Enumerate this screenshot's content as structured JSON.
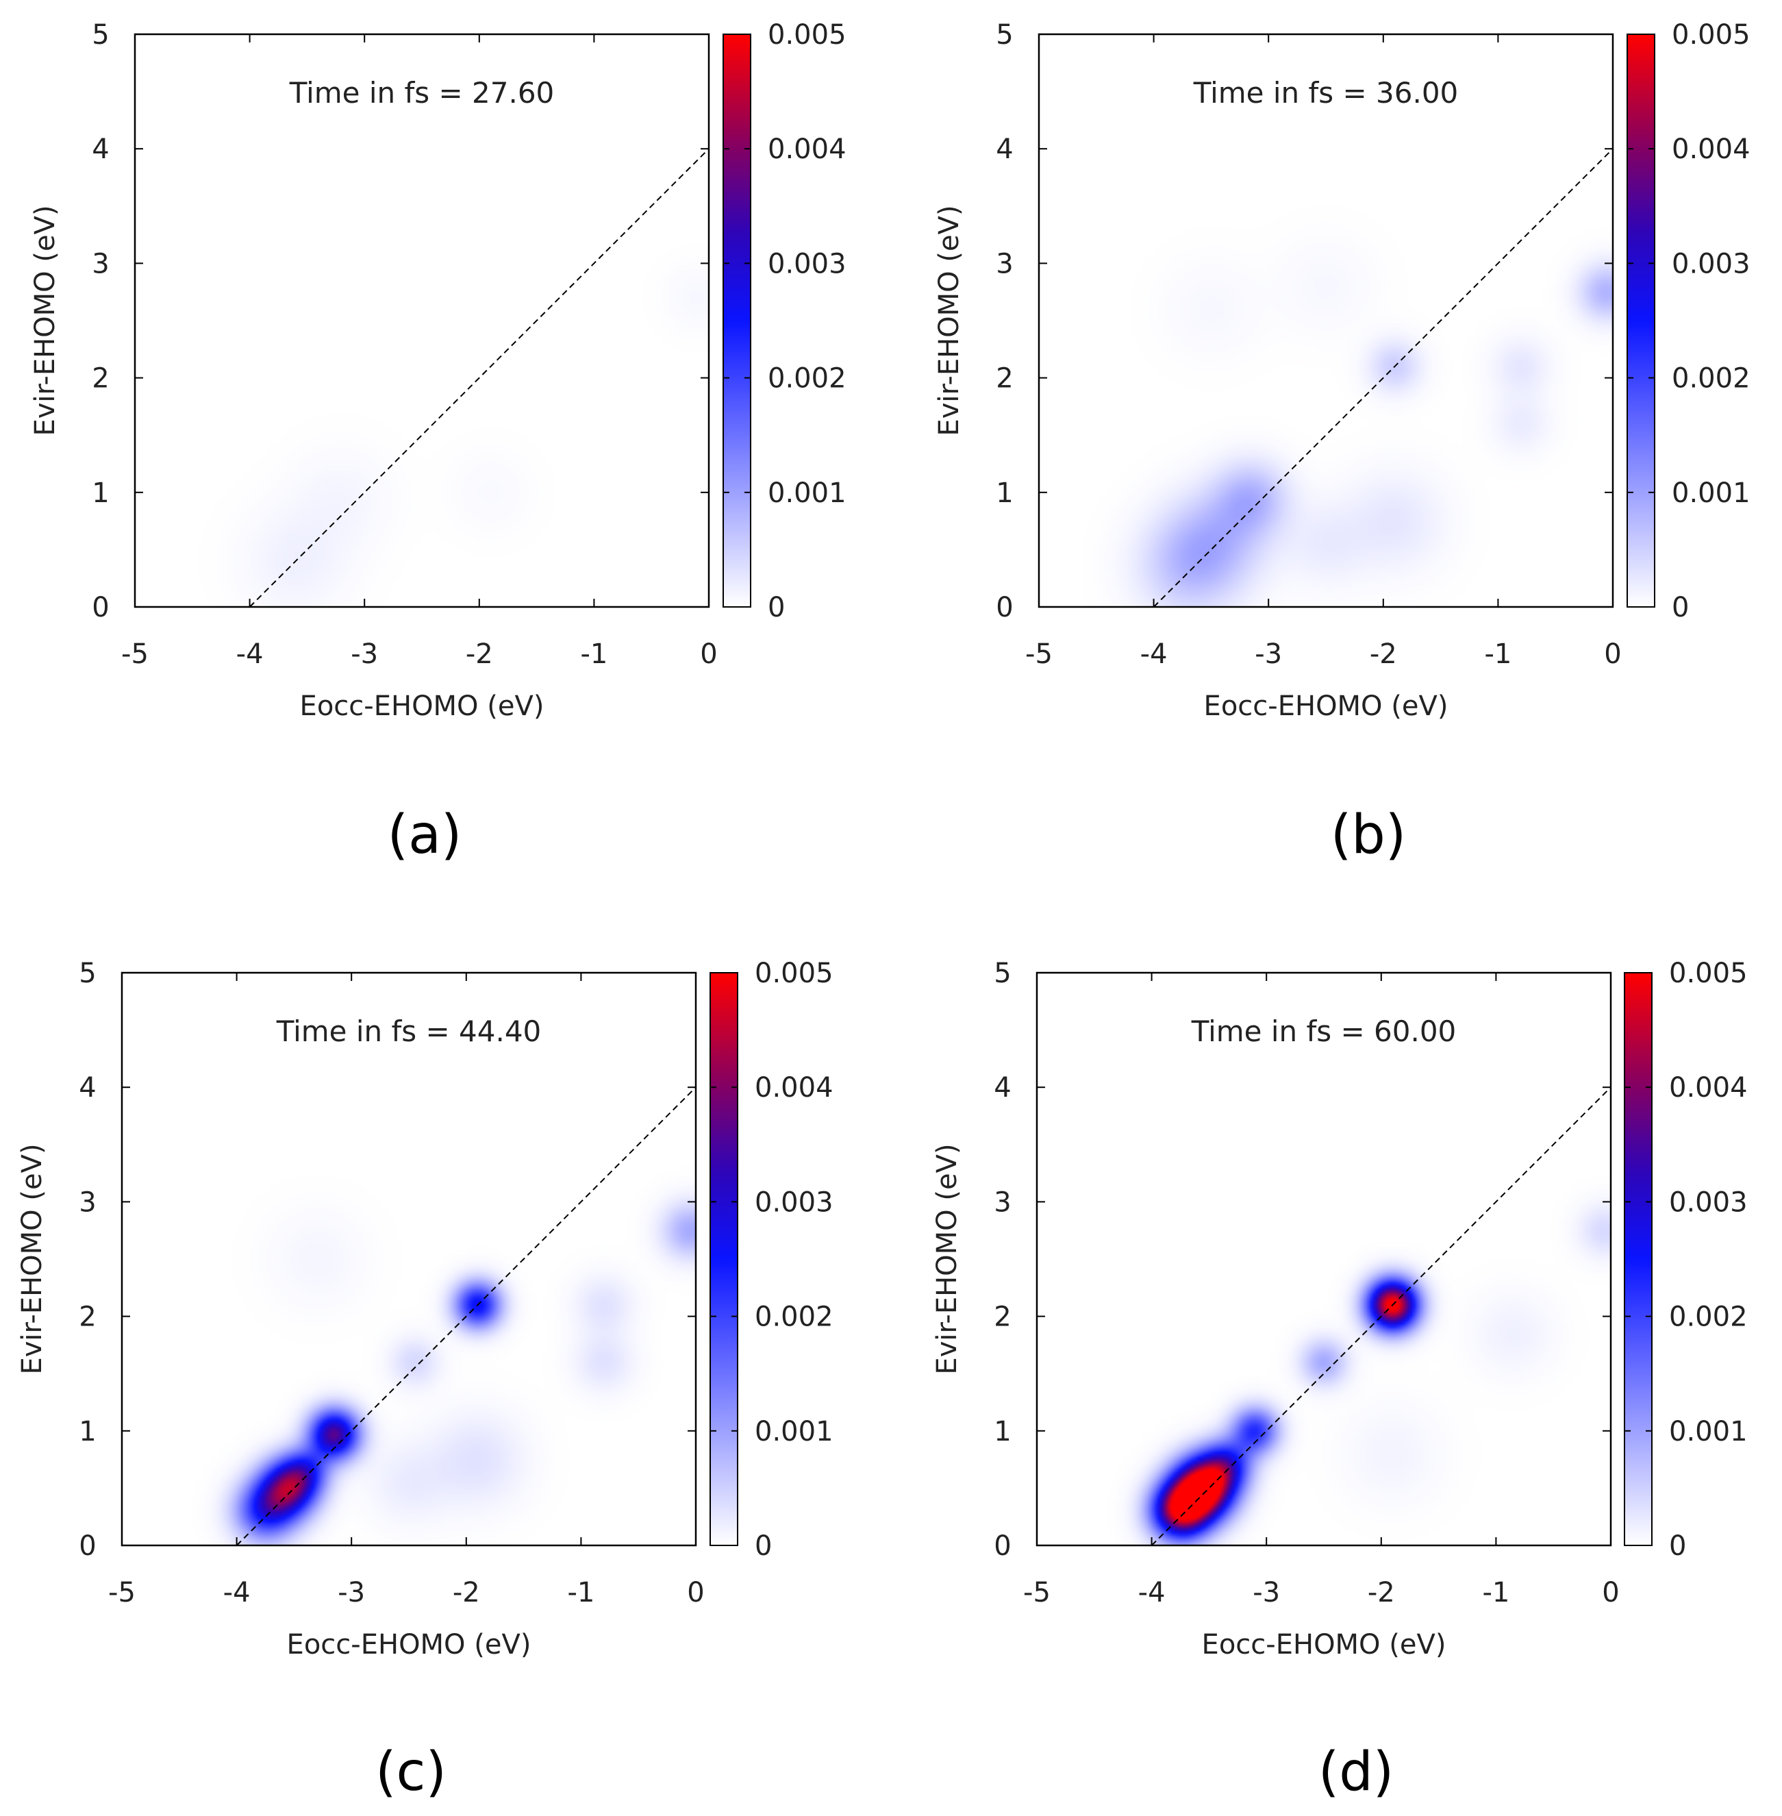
{
  "chart_data": [
    {
      "type": "heatmap",
      "panel_label": "(a)",
      "annotation": "Time in fs = 27.60",
      "xlabel": "Eocc-EHOMO (eV)",
      "ylabel": "Evir-EHOMO (eV)",
      "xlim": [
        -5,
        0
      ],
      "ylim": [
        0,
        5
      ],
      "x_ticks": [
        "-5",
        "-4",
        "-3",
        "-2",
        "-1",
        "0"
      ],
      "y_ticks": [
        "0",
        "1",
        "2",
        "3",
        "4",
        "5"
      ],
      "colorbar": {
        "range": [
          0,
          0.005
        ],
        "ticks": [
          "0",
          "0.001",
          "0.002",
          "0.003",
          "0.004",
          "0.005"
        ]
      },
      "reference_line": {
        "from": [
          -4,
          0
        ],
        "to": [
          0,
          4
        ],
        "style": "dashed"
      },
      "peaks": [
        {
          "x": -3.6,
          "y": 0.4,
          "value": 0.00015,
          "sigma": 0.32
        },
        {
          "x": -3.2,
          "y": 0.95,
          "value": 0.0001,
          "sigma": 0.3
        },
        {
          "x": -1.9,
          "y": 1.0,
          "value": 6e-05,
          "sigma": 0.25
        },
        {
          "x": -0.1,
          "y": 2.7,
          "value": 8e-05,
          "sigma": 0.2
        }
      ]
    },
    {
      "type": "heatmap",
      "panel_label": "(b)",
      "annotation": "Time in fs = 36.00",
      "xlabel": "Eocc-EHOMO (eV)",
      "ylabel": "Evir-EHOMO (eV)",
      "xlim": [
        -5,
        0
      ],
      "ylim": [
        0,
        5
      ],
      "x_ticks": [
        "-5",
        "-4",
        "-3",
        "-2",
        "-1",
        "0"
      ],
      "y_ticks": [
        "0",
        "1",
        "2",
        "3",
        "4",
        "5"
      ],
      "colorbar": {
        "range": [
          0,
          0.005
        ],
        "ticks": [
          "0",
          "0.001",
          "0.002",
          "0.003",
          "0.004",
          "0.005"
        ]
      },
      "reference_line": {
        "from": [
          -4,
          0
        ],
        "to": [
          0,
          4
        ],
        "style": "dashed"
      },
      "peaks": [
        {
          "x": -3.7,
          "y": 0.35,
          "value": 0.0006,
          "sigma": 0.3
        },
        {
          "x": -3.45,
          "y": 0.6,
          "value": 0.0006,
          "sigma": 0.3
        },
        {
          "x": -3.15,
          "y": 0.95,
          "value": 0.00075,
          "sigma": 0.22
        },
        {
          "x": -1.9,
          "y": 2.1,
          "value": 0.0005,
          "sigma": 0.16
        },
        {
          "x": -1.9,
          "y": 0.75,
          "value": 0.00025,
          "sigma": 0.3
        },
        {
          "x": -2.5,
          "y": 0.55,
          "value": 0.0002,
          "sigma": 0.25
        },
        {
          "x": -0.8,
          "y": 2.1,
          "value": 0.00025,
          "sigma": 0.18
        },
        {
          "x": -0.8,
          "y": 1.6,
          "value": 0.0002,
          "sigma": 0.18
        },
        {
          "x": -0.05,
          "y": 2.75,
          "value": 0.0008,
          "sigma": 0.17
        },
        {
          "x": -3.5,
          "y": 2.6,
          "value": 8e-05,
          "sigma": 0.3
        },
        {
          "x": -2.5,
          "y": 2.8,
          "value": 8e-05,
          "sigma": 0.3
        }
      ]
    },
    {
      "type": "heatmap",
      "panel_label": "(c)",
      "annotation": "Time in fs = 44.40",
      "xlabel": "Eocc-EHOMO (eV)",
      "ylabel": "Evir-EHOMO (eV)",
      "xlim": [
        -5,
        0
      ],
      "ylim": [
        0,
        5
      ],
      "x_ticks": [
        "-5",
        "-4",
        "-3",
        "-2",
        "-1",
        "0"
      ],
      "y_ticks": [
        "0",
        "1",
        "2",
        "3",
        "4",
        "5"
      ],
      "colorbar": {
        "range": [
          0,
          0.005
        ],
        "ticks": [
          "0",
          "0.001",
          "0.002",
          "0.003",
          "0.004",
          "0.005"
        ]
      },
      "reference_line": {
        "from": [
          -4,
          0
        ],
        "to": [
          0,
          4
        ],
        "style": "dashed"
      },
      "peaks": [
        {
          "x": -3.75,
          "y": 0.3,
          "value": 0.0023,
          "sigma": 0.18
        },
        {
          "x": -3.55,
          "y": 0.5,
          "value": 0.0034,
          "sigma": 0.17
        },
        {
          "x": -3.4,
          "y": 0.65,
          "value": 0.0016,
          "sigma": 0.14
        },
        {
          "x": -3.15,
          "y": 0.97,
          "value": 0.0036,
          "sigma": 0.15
        },
        {
          "x": -1.9,
          "y": 2.1,
          "value": 0.0026,
          "sigma": 0.14
        },
        {
          "x": -2.45,
          "y": 1.6,
          "value": 0.0004,
          "sigma": 0.15
        },
        {
          "x": -1.9,
          "y": 0.75,
          "value": 0.0003,
          "sigma": 0.28
        },
        {
          "x": -2.5,
          "y": 0.55,
          "value": 0.0002,
          "sigma": 0.25
        },
        {
          "x": -0.8,
          "y": 2.1,
          "value": 0.0003,
          "sigma": 0.18
        },
        {
          "x": -0.8,
          "y": 1.6,
          "value": 0.0003,
          "sigma": 0.18
        },
        {
          "x": -0.05,
          "y": 2.75,
          "value": 0.0009,
          "sigma": 0.17
        },
        {
          "x": -3.3,
          "y": 2.5,
          "value": 0.0001,
          "sigma": 0.3
        }
      ]
    },
    {
      "type": "heatmap",
      "panel_label": "(d)",
      "annotation": "Time in fs = 60.00",
      "xlabel": "Eocc-EHOMO (eV)",
      "ylabel": "Evir-EHOMO (eV)",
      "xlim": [
        -5,
        0
      ],
      "ylim": [
        0,
        5
      ],
      "x_ticks": [
        "-5",
        "-4",
        "-3",
        "-2",
        "-1",
        "0"
      ],
      "y_ticks": [
        "0",
        "1",
        "2",
        "3",
        "4",
        "5"
      ],
      "colorbar": {
        "range": [
          0,
          0.005
        ],
        "ticks": [
          "0",
          "0.001",
          "0.002",
          "0.003",
          "0.004",
          "0.005"
        ]
      },
      "reference_line": {
        "from": [
          -4,
          0
        ],
        "to": [
          0,
          4
        ],
        "style": "dashed"
      },
      "peaks": [
        {
          "x": -3.75,
          "y": 0.3,
          "value": 0.0045,
          "sigma": 0.17
        },
        {
          "x": -3.55,
          "y": 0.5,
          "value": 0.0055,
          "sigma": 0.18
        },
        {
          "x": -3.35,
          "y": 0.7,
          "value": 0.0022,
          "sigma": 0.15
        },
        {
          "x": -3.1,
          "y": 1.0,
          "value": 0.0022,
          "sigma": 0.14
        },
        {
          "x": -2.5,
          "y": 1.6,
          "value": 0.0009,
          "sigma": 0.14
        },
        {
          "x": -1.9,
          "y": 2.1,
          "value": 0.0052,
          "sigma": 0.15
        },
        {
          "x": -0.85,
          "y": 1.85,
          "value": 0.00015,
          "sigma": 0.25
        },
        {
          "x": -1.9,
          "y": 0.8,
          "value": 0.00012,
          "sigma": 0.3
        },
        {
          "x": -0.05,
          "y": 2.75,
          "value": 0.0004,
          "sigma": 0.16
        }
      ]
    }
  ]
}
